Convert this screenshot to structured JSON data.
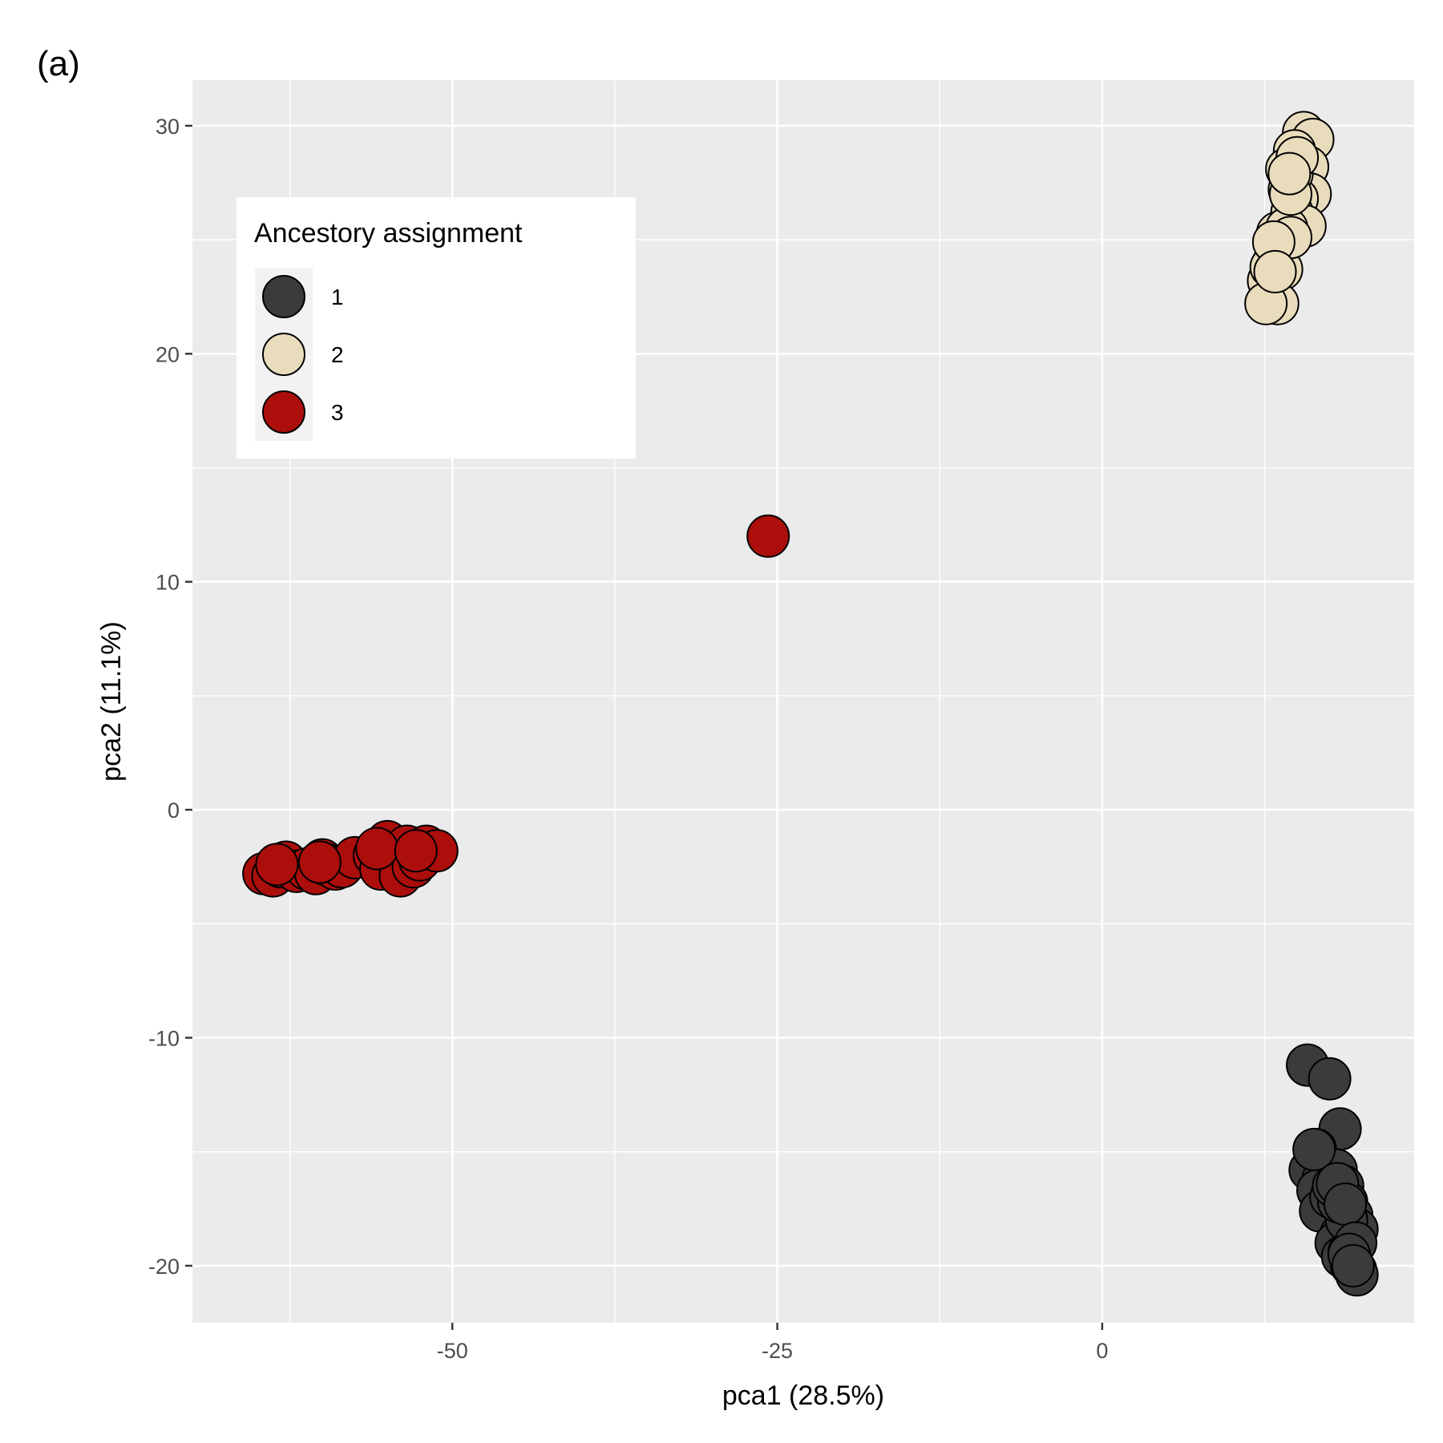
{
  "panel_label": "(a)",
  "chart_data": {
    "type": "scatter",
    "xlabel": "pca1 (28.5%)",
    "ylabel": "pca2 (11.1%)",
    "xlim": [
      -70,
      24
    ],
    "ylim": [
      -22.5,
      32
    ],
    "x_ticks": [
      -50,
      -25,
      0
    ],
    "y_ticks": [
      -20,
      -10,
      0,
      10,
      20,
      30
    ],
    "x_tick_labels": [
      "-50",
      "-25",
      "0"
    ],
    "y_tick_labels": [
      "-20",
      "-10",
      "0",
      "10",
      "20",
      "30"
    ],
    "grid": true,
    "legend": {
      "title": "Ancestory assignment",
      "placement": "top-left-inside",
      "entries": [
        "1",
        "2",
        "3"
      ]
    },
    "colors": {
      "1": "#3b3b3b",
      "2": "#e8dcbc",
      "3": "#ab0e0b"
    },
    "series": [
      {
        "name": "3",
        "points": [
          [
            -25.7,
            12.0
          ],
          [
            -64.5,
            -2.8
          ],
          [
            -63.8,
            -2.9
          ],
          [
            -63.2,
            -2.5
          ],
          [
            -62.8,
            -2.3
          ],
          [
            -62.0,
            -2.7
          ],
          [
            -61.2,
            -2.6
          ],
          [
            -60.5,
            -2.8
          ],
          [
            -60.0,
            -2.2
          ],
          [
            -59.7,
            -2.4
          ],
          [
            -59.0,
            -2.6
          ],
          [
            -58.5,
            -2.5
          ],
          [
            -57.5,
            -2.1
          ],
          [
            -56.0,
            -2.0
          ],
          [
            -55.5,
            -2.6
          ],
          [
            -55.0,
            -1.4
          ],
          [
            -54.5,
            -2.0
          ],
          [
            -54.0,
            -2.9
          ],
          [
            -53.5,
            -1.6
          ],
          [
            -53.0,
            -2.5
          ],
          [
            -52.5,
            -2.2
          ],
          [
            -52.0,
            -1.6
          ],
          [
            -51.2,
            -1.8
          ],
          [
            -55.8,
            -1.7
          ],
          [
            -52.8,
            -1.8
          ],
          [
            -63.5,
            -2.4
          ],
          [
            -60.2,
            -2.3
          ]
        ]
      },
      {
        "name": "2",
        "points": [
          [
            15.5,
            29.7
          ],
          [
            16.2,
            29.4
          ],
          [
            14.8,
            28.9
          ],
          [
            15.2,
            28.4
          ],
          [
            14.5,
            27.9
          ],
          [
            15.8,
            28.2
          ],
          [
            16.0,
            27.0
          ],
          [
            15.0,
            26.8
          ],
          [
            14.6,
            26.2
          ],
          [
            15.6,
            25.6
          ],
          [
            14.2,
            25.0
          ],
          [
            13.5,
            25.3
          ],
          [
            13.2,
            24.0
          ],
          [
            13.8,
            23.7
          ],
          [
            12.8,
            23.2
          ],
          [
            13.5,
            22.2
          ],
          [
            12.6,
            22.2
          ],
          [
            14.3,
            28.0
          ],
          [
            14.4,
            27.2
          ],
          [
            14.2,
            25.5
          ],
          [
            14.5,
            25.1
          ],
          [
            14.2,
            28.1
          ],
          [
            14.6,
            27.9
          ],
          [
            13.0,
            23.8
          ],
          [
            13.2,
            24.9
          ],
          [
            15.0,
            28.6
          ],
          [
            14.5,
            27.0
          ],
          [
            13.3,
            23.6
          ],
          [
            14.4,
            27.9
          ]
        ]
      },
      {
        "name": "1",
        "points": [
          [
            15.8,
            -11.2
          ],
          [
            17.5,
            -11.8
          ],
          [
            18.3,
            -14.0
          ],
          [
            16.0,
            -15.8
          ],
          [
            16.4,
            -14.9
          ],
          [
            17.0,
            -16.2
          ],
          [
            18.0,
            -15.8
          ],
          [
            16.6,
            -16.7
          ],
          [
            16.8,
            -17.6
          ],
          [
            17.6,
            -17.0
          ],
          [
            18.5,
            -16.5
          ],
          [
            18.8,
            -17.2
          ],
          [
            19.2,
            -17.8
          ],
          [
            19.6,
            -18.4
          ],
          [
            18.4,
            -18.6
          ],
          [
            18.0,
            -19.0
          ],
          [
            18.5,
            -19.6
          ],
          [
            19.2,
            -20.0
          ],
          [
            19.5,
            -20.2
          ],
          [
            19.6,
            -20.4
          ],
          [
            19.0,
            -19.4
          ],
          [
            18.8,
            -18.0
          ],
          [
            18.2,
            -17.2
          ],
          [
            17.8,
            -16.5
          ],
          [
            16.3,
            -14.9
          ],
          [
            18.1,
            -16.4
          ],
          [
            18.7,
            -17.3
          ],
          [
            19.5,
            -19.0
          ],
          [
            19.0,
            -19.5
          ],
          [
            19.3,
            -20.0
          ]
        ]
      }
    ]
  }
}
